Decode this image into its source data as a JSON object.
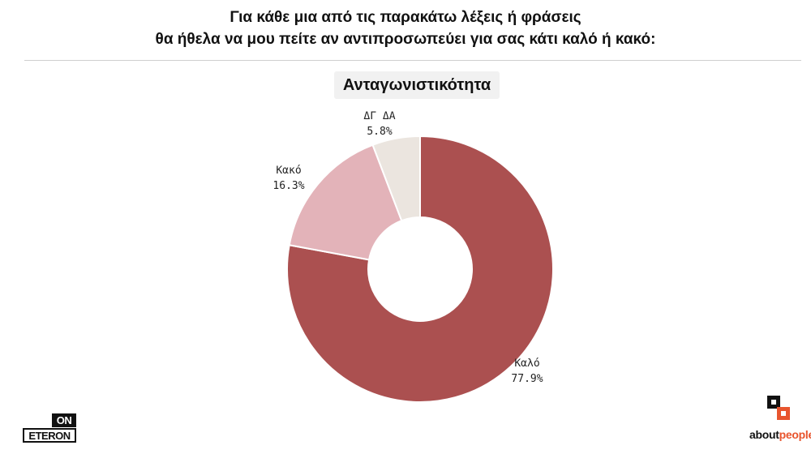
{
  "header": {
    "line1": "Για κάθε μια από τις παρακάτω λέξεις ή φράσεις",
    "line2": "θα ήθελα να μου πείτε αν αντιπροσωπεύει για σας κάτι καλό ή κακό:"
  },
  "chart_data": {
    "type": "pie",
    "title": "Ανταγωνιστικότητα",
    "slices": [
      {
        "label": "Καλό",
        "value": 77.9,
        "display": "77.9%",
        "color": "#ab5050"
      },
      {
        "label": "Κακό",
        "value": 16.3,
        "display": "16.3%",
        "color": "#e3b3b9"
      },
      {
        "label": "ΔΓ ΔΑ",
        "value": 5.8,
        "display": "5.8%",
        "color": "#ebe5df"
      }
    ],
    "legend": "none",
    "donut": true
  },
  "logos": {
    "left_top": "ON",
    "left_bottom": "ETERON",
    "right_part1": "about",
    "right_part2": "people"
  }
}
